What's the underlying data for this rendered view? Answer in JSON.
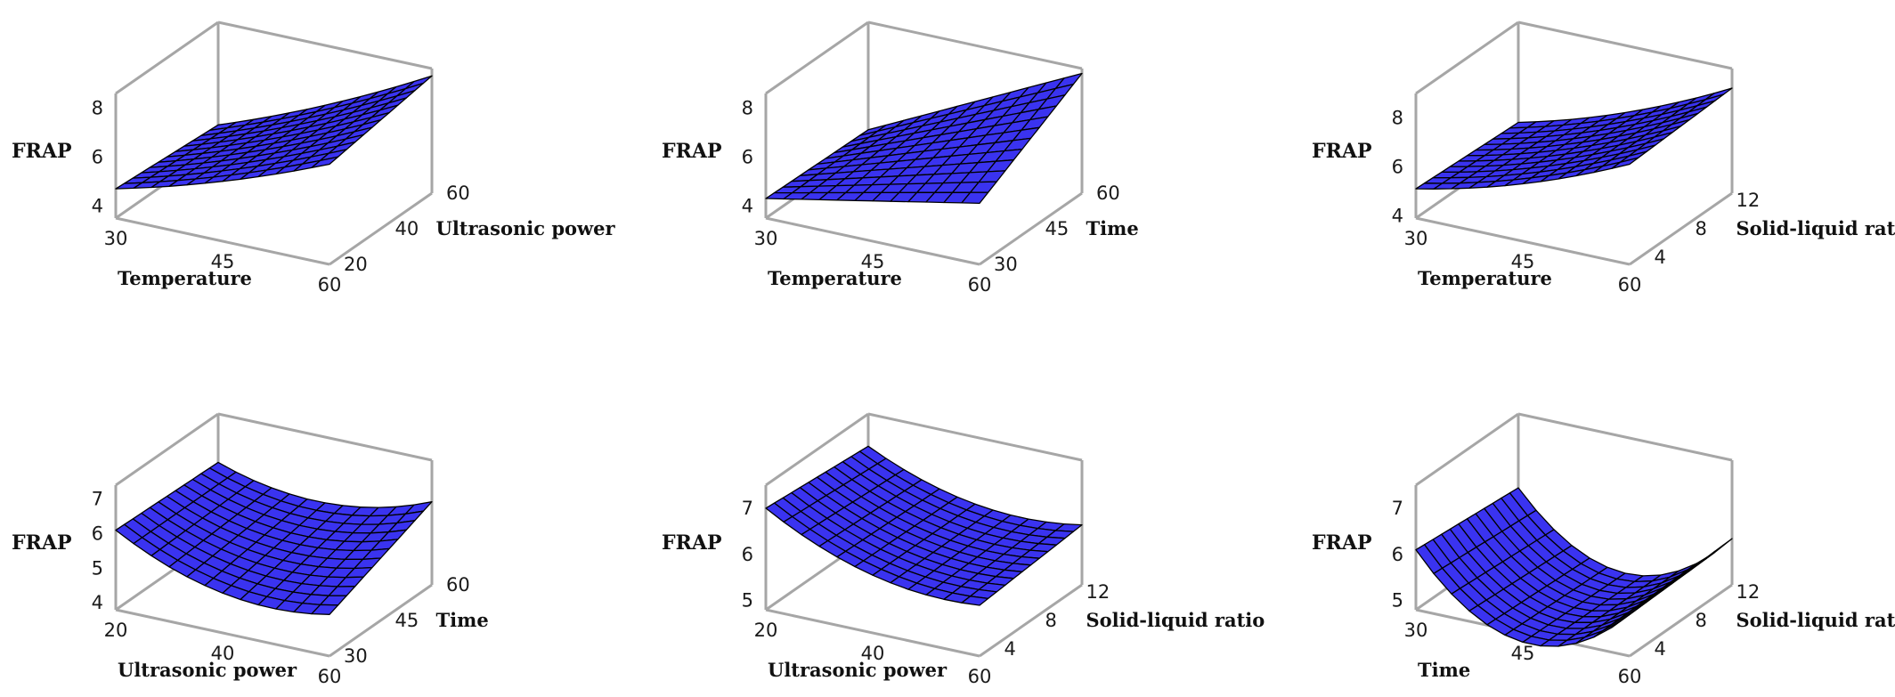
{
  "colors": {
    "surface_top": "#3a33f0",
    "surface_under": "#05050a",
    "mesh": "#000000",
    "frame": "#a6a6a6"
  },
  "chart_data": [
    {
      "type": "surface",
      "zlabel": "FRAP",
      "xlabel": "Temperature",
      "ylabel": "Ultrasonic power",
      "xticks": [
        "30",
        "45",
        "60"
      ],
      "yticks": [
        "20",
        "40",
        "60"
      ],
      "zticks": [
        "4",
        "6",
        "8"
      ],
      "xlim": [
        30,
        60
      ],
      "ylim": [
        20,
        60
      ],
      "zlim": [
        3.5,
        8.6
      ],
      "z_corners": {
        "x_low_y_low": 4.7,
        "x_high_y_low": 7.6,
        "x_low_y_high": 4.4,
        "x_high_y_high": 8.3
      },
      "curvature": -0.2
    },
    {
      "type": "surface",
      "zlabel": "FRAP",
      "xlabel": "Temperature",
      "ylabel": "Time",
      "xticks": [
        "30",
        "45",
        "60"
      ],
      "yticks": [
        "30",
        "45",
        "60"
      ],
      "zticks": [
        "4",
        "6",
        "8"
      ],
      "xlim": [
        30,
        60
      ],
      "ylim": [
        30,
        60
      ],
      "zlim": [
        3.5,
        8.6
      ],
      "z_corners": {
        "x_low_y_low": 4.3,
        "x_high_y_low": 6.0,
        "x_low_y_high": 4.2,
        "x_high_y_high": 8.4
      },
      "curvature": 0
    },
    {
      "type": "surface",
      "zlabel": "FRAP",
      "xlabel": "Temperature",
      "ylabel": "Solid-liquid ratio",
      "xticks": [
        "30",
        "45",
        "60"
      ],
      "yticks": [
        "4",
        "8",
        "12"
      ],
      "zticks": [
        "4",
        "6",
        "8"
      ],
      "xlim": [
        30,
        60
      ],
      "ylim": [
        3,
        13
      ],
      "zlim": [
        3.9,
        9.0
      ],
      "z_corners": {
        "x_low_y_low": 5.1,
        "x_high_y_low": 8.0,
        "x_low_y_high": 4.9,
        "x_high_y_high": 8.2
      },
      "curvature": -0.3
    },
    {
      "type": "surface",
      "zlabel": "FRAP",
      "xlabel": "Ultrasonic power",
      "ylabel": "Time",
      "xticks": [
        "20",
        "40",
        "60"
      ],
      "yticks": [
        "30",
        "45",
        "60"
      ],
      "zticks": [
        "4",
        "5",
        "6",
        "7"
      ],
      "xlim": [
        20,
        60
      ],
      "ylim": [
        30,
        60
      ],
      "zlim": [
        3.8,
        7.4
      ],
      "z_corners": {
        "x_low_y_low": 6.1,
        "x_high_y_low": 5.0,
        "x_low_y_high": 6.0,
        "x_high_y_high": 6.2
      },
      "curvature": -0.6
    },
    {
      "type": "surface",
      "zlabel": "FRAP",
      "xlabel": "Ultrasonic power",
      "ylabel": "Solid-liquid ratio",
      "xticks": [
        "20",
        "40",
        "60"
      ],
      "yticks": [
        "4",
        "8",
        "12"
      ],
      "zticks": [
        "5",
        "6",
        "7"
      ],
      "xlim": [
        20,
        60
      ],
      "ylim": [
        3,
        13
      ],
      "zlim": [
        4.8,
        7.5
      ],
      "z_corners": {
        "x_low_y_low": 7.0,
        "x_high_y_low": 5.9,
        "x_low_y_high": 6.8,
        "x_high_y_high": 6.1
      },
      "curvature": -0.4
    },
    {
      "type": "surface",
      "zlabel": "FRAP",
      "xlabel": "Time",
      "ylabel": "Solid-liquid ratio",
      "xticks": [
        "30",
        "45",
        "60"
      ],
      "yticks": [
        "4",
        "8",
        "12"
      ],
      "zticks": [
        "5",
        "6",
        "7"
      ],
      "xlim": [
        30,
        60
      ],
      "ylim": [
        3,
        13
      ],
      "zlim": [
        4.8,
        7.5
      ],
      "z_corners": {
        "x_low_y_low": 6.1,
        "x_high_y_low": 5.7,
        "x_low_y_high": 5.9,
        "x_high_y_high": 5.8
      },
      "curvature": -1.3
    }
  ]
}
